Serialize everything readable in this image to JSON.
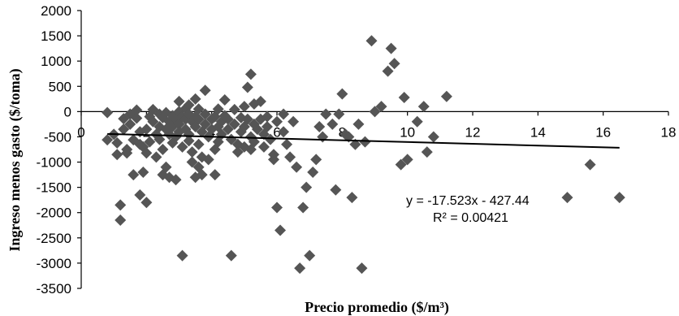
{
  "chart_data": {
    "type": "scatter",
    "xlabel": "Precio promedio ($/m³)",
    "ylabel": "Ingreso menos gasto ($/toma)",
    "xlim": [
      0,
      18
    ],
    "ylim": [
      -3500,
      2000
    ],
    "x_ticks": [
      0,
      2,
      4,
      6,
      8,
      10,
      12,
      14,
      16,
      18
    ],
    "y_ticks": [
      2000,
      1500,
      1000,
      500,
      0,
      -500,
      -1000,
      -1500,
      -2000,
      -2500,
      -3000,
      -3500
    ],
    "grid": false,
    "legend": "none",
    "marker_color": "#555555",
    "marker": "diamond",
    "trendline": {
      "slope": -17.523,
      "intercept": -427.44,
      "x_range": [
        0.8,
        16.5
      ],
      "color": "#000000"
    },
    "equation_label": "y = -17.523x - 427.44",
    "r2_label": "R² = 0.00421",
    "points": [
      [
        0.8,
        -20
      ],
      [
        0.8,
        -560
      ],
      [
        1.0,
        -450
      ],
      [
        1.1,
        -620
      ],
      [
        1.1,
        -850
      ],
      [
        1.2,
        -2150
      ],
      [
        1.2,
        -1850
      ],
      [
        1.3,
        -140
      ],
      [
        1.3,
        -350
      ],
      [
        1.4,
        -750
      ],
      [
        1.4,
        -820
      ],
      [
        1.5,
        -50
      ],
      [
        1.5,
        -250
      ],
      [
        1.6,
        -560
      ],
      [
        1.6,
        -1250
      ],
      [
        1.7,
        30
      ],
      [
        1.7,
        -130
      ],
      [
        1.8,
        -400
      ],
      [
        1.8,
        -650
      ],
      [
        1.8,
        -1650
      ],
      [
        1.9,
        -1200
      ],
      [
        1.9,
        -700
      ],
      [
        2.0,
        -820
      ],
      [
        2.0,
        -1800
      ],
      [
        2.0,
        -350
      ],
      [
        2.1,
        -100
      ],
      [
        2.1,
        -600
      ],
      [
        2.2,
        40
      ],
      [
        2.2,
        -200
      ],
      [
        2.3,
        -450
      ],
      [
        2.3,
        -900
      ],
      [
        2.4,
        -50
      ],
      [
        2.4,
        -300
      ],
      [
        2.4,
        -550
      ],
      [
        2.5,
        -120
      ],
      [
        2.5,
        -750
      ],
      [
        2.5,
        -1250
      ],
      [
        2.6,
        -20
      ],
      [
        2.6,
        -350
      ],
      [
        2.6,
        -1100
      ],
      [
        2.7,
        -200
      ],
      [
        2.7,
        -450
      ],
      [
        2.7,
        -1300
      ],
      [
        2.8,
        -80
      ],
      [
        2.8,
        -300
      ],
      [
        2.8,
        -620
      ],
      [
        2.9,
        -150
      ],
      [
        2.9,
        -500
      ],
      [
        2.9,
        -1350
      ],
      [
        3.0,
        200
      ],
      [
        3.0,
        0
      ],
      [
        3.0,
        -250
      ],
      [
        3.0,
        -400
      ],
      [
        3.1,
        -100
      ],
      [
        3.1,
        -700
      ],
      [
        3.1,
        -2850
      ],
      [
        3.2,
        60
      ],
      [
        3.2,
        -150
      ],
      [
        3.2,
        -350
      ],
      [
        3.3,
        130
      ],
      [
        3.3,
        -50
      ],
      [
        3.3,
        -450
      ],
      [
        3.3,
        -580
      ],
      [
        3.4,
        -200
      ],
      [
        3.4,
        -800
      ],
      [
        3.4,
        -1000
      ],
      [
        3.5,
        250
      ],
      [
        3.5,
        -100
      ],
      [
        3.5,
        -300
      ],
      [
        3.5,
        -1300
      ],
      [
        3.6,
        50
      ],
      [
        3.6,
        -150
      ],
      [
        3.6,
        -650
      ],
      [
        3.6,
        -1100
      ],
      [
        3.7,
        -400
      ],
      [
        3.7,
        -900
      ],
      [
        3.7,
        -1250
      ],
      [
        3.8,
        420
      ],
      [
        3.8,
        -50
      ],
      [
        3.8,
        -250
      ],
      [
        3.9,
        -500
      ],
      [
        3.9,
        -950
      ],
      [
        4.0,
        -150
      ],
      [
        4.0,
        -350
      ],
      [
        4.1,
        -100
      ],
      [
        4.1,
        -750
      ],
      [
        4.1,
        -1250
      ],
      [
        4.2,
        50
      ],
      [
        4.2,
        -300
      ],
      [
        4.2,
        -600
      ],
      [
        4.3,
        -200
      ],
      [
        4.3,
        -450
      ],
      [
        4.4,
        230
      ],
      [
        4.4,
        -80
      ],
      [
        4.5,
        -150
      ],
      [
        4.5,
        -350
      ],
      [
        4.6,
        -2850
      ],
      [
        4.6,
        -550
      ],
      [
        4.7,
        40
      ],
      [
        4.7,
        -250
      ],
      [
        4.8,
        -650
      ],
      [
        4.8,
        -800
      ],
      [
        4.9,
        -120
      ],
      [
        4.9,
        -400
      ],
      [
        5.0,
        100
      ],
      [
        5.0,
        -300
      ],
      [
        5.0,
        -700
      ],
      [
        5.1,
        480
      ],
      [
        5.1,
        -150
      ],
      [
        5.2,
        740
      ],
      [
        5.2,
        -500
      ],
      [
        5.2,
        -750
      ],
      [
        5.3,
        150
      ],
      [
        5.3,
        -250
      ],
      [
        5.3,
        -600
      ],
      [
        5.4,
        -350
      ],
      [
        5.5,
        200
      ],
      [
        5.5,
        -150
      ],
      [
        5.6,
        -450
      ],
      [
        5.6,
        -700
      ],
      [
        5.7,
        -100
      ],
      [
        5.7,
        -300
      ],
      [
        5.8,
        -550
      ],
      [
        5.9,
        -850
      ],
      [
        5.9,
        -950
      ],
      [
        6.0,
        -200
      ],
      [
        6.0,
        -1900
      ],
      [
        6.1,
        -2350
      ],
      [
        6.2,
        -50
      ],
      [
        6.2,
        -400
      ],
      [
        6.3,
        -650
      ],
      [
        6.4,
        -900
      ],
      [
        6.5,
        -200
      ],
      [
        6.6,
        -1100
      ],
      [
        6.7,
        -3100
      ],
      [
        6.8,
        -1900
      ],
      [
        6.9,
        -1500
      ],
      [
        7.0,
        -2850
      ],
      [
        7.1,
        -1200
      ],
      [
        7.2,
        -950
      ],
      [
        7.3,
        -300
      ],
      [
        7.4,
        -500
      ],
      [
        7.5,
        -50
      ],
      [
        7.7,
        -250
      ],
      [
        7.8,
        -1550
      ],
      [
        7.9,
        -50
      ],
      [
        8.0,
        350
      ],
      [
        8.1,
        -450
      ],
      [
        8.2,
        -500
      ],
      [
        8.3,
        -1700
      ],
      [
        8.4,
        -650
      ],
      [
        8.5,
        -250
      ],
      [
        8.6,
        -3100
      ],
      [
        8.7,
        -600
      ],
      [
        8.9,
        1400
      ],
      [
        9.0,
        0
      ],
      [
        9.2,
        100
      ],
      [
        9.4,
        800
      ],
      [
        9.5,
        1250
      ],
      [
        9.6,
        950
      ],
      [
        9.8,
        -1050
      ],
      [
        9.9,
        280
      ],
      [
        10.0,
        -950
      ],
      [
        10.3,
        -200
      ],
      [
        10.5,
        100
      ],
      [
        10.6,
        -800
      ],
      [
        10.8,
        -500
      ],
      [
        11.2,
        300
      ],
      [
        14.9,
        -1700
      ],
      [
        15.6,
        -1050
      ],
      [
        16.5,
        -1700
      ]
    ]
  }
}
